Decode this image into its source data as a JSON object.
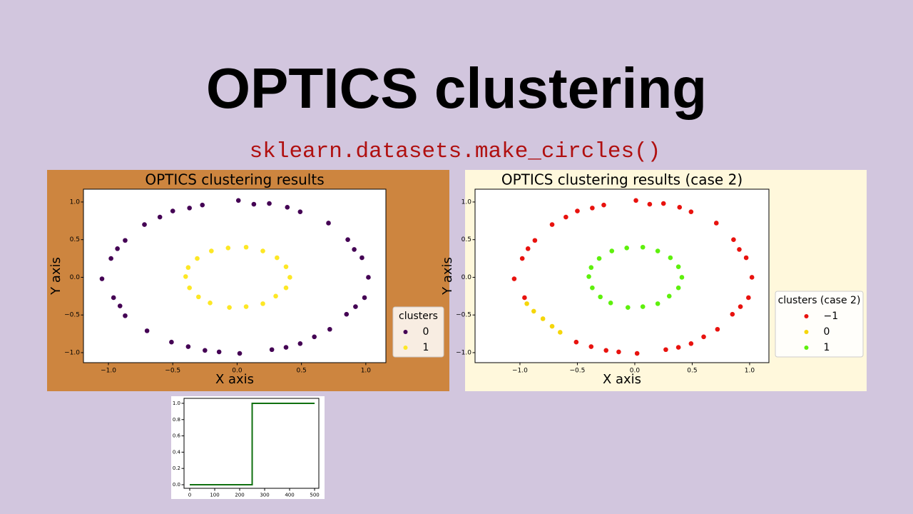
{
  "slide": {
    "title": "OPTICS clustering",
    "subtitle": "sklearn.datasets.make_circles()"
  },
  "chart_data": [
    {
      "type": "scatter",
      "title": "OPTICS clustering results",
      "xlabel": "X axis",
      "ylabel": "Y axis",
      "background": "#cd853f",
      "legend_title": "clusters",
      "legend": "lower right",
      "xlim": [
        -1.194,
        1.156
      ],
      "ylim": [
        -1.133,
        1.17
      ],
      "xticks": [
        {
          "value": -1,
          "label": "−1.0"
        },
        {
          "value": -0.5,
          "label": "−0.5"
        },
        {
          "value": 0,
          "label": "0.0"
        },
        0.5,
        {
          "value": 1,
          "label": "1.0"
        }
      ],
      "yticks": [
        {
          "value": -1,
          "label": "−1.0"
        },
        {
          "value": -0.5,
          "label": "−0.5"
        },
        {
          "value": 0,
          "label": "0.0"
        },
        0.5,
        {
          "value": 1,
          "label": "1.0"
        }
      ],
      "series": [
        {
          "name": "0",
          "color": "#440154",
          "x": [
            1.02,
            0.97,
            0.86,
            0.71,
            0.49,
            0.25,
            0.01,
            -0.27,
            -0.5,
            -0.72,
            -0.87,
            -0.98,
            -1.05,
            -0.96,
            -0.87,
            -0.7,
            -0.51,
            -0.25,
            0.02,
            0.27,
            0.49,
            0.72,
            0.85,
            0.99,
            0.91,
            0.39,
            -0.37,
            -0.93,
            -0.91,
            -0.38,
            0.38,
            0.92,
            0.13,
            -0.14,
            -0.6,
            0.6
          ],
          "y": [
            0.0,
            0.26,
            0.5,
            0.72,
            0.87,
            0.98,
            1.02,
            0.96,
            0.88,
            0.7,
            0.49,
            0.25,
            -0.02,
            -0.27,
            -0.51,
            -0.71,
            -0.86,
            -0.97,
            -1.01,
            -0.96,
            -0.88,
            -0.69,
            -0.49,
            -0.27,
            0.37,
            0.93,
            0.92,
            0.38,
            -0.38,
            -0.92,
            -0.93,
            -0.39,
            0.97,
            -0.99,
            0.8,
            -0.79
          ]
        },
        {
          "name": "1",
          "color": "#fde725",
          "x": [
            0.41,
            0.38,
            0.31,
            0.2,
            0.07,
            -0.07,
            -0.2,
            -0.31,
            -0.38,
            -0.4,
            -0.37,
            -0.3,
            -0.21,
            -0.06,
            0.07,
            0.2,
            0.3,
            0.38
          ],
          "y": [
            0.0,
            0.14,
            0.26,
            0.35,
            0.4,
            0.39,
            0.35,
            0.25,
            0.13,
            0.01,
            -0.14,
            -0.26,
            -0.34,
            -0.4,
            -0.39,
            -0.35,
            -0.25,
            -0.14
          ]
        }
      ]
    },
    {
      "type": "scatter",
      "title": "OPTICS clustering results (case 2)",
      "xlabel": "X axis",
      "ylabel": "Y axis",
      "background": "#fff8dc",
      "legend_title": "clusters (case 2)",
      "legend": "center right",
      "xlim": [
        -1.391,
        1.168
      ],
      "ylim": [
        -1.133,
        1.17
      ],
      "xticks": [
        {
          "value": -1,
          "label": "−1.0"
        },
        {
          "value": -0.5,
          "label": "−0.5"
        },
        {
          "value": 0,
          "label": "0.0"
        },
        0.5,
        {
          "value": 1,
          "label": "1.0"
        }
      ],
      "yticks": [
        {
          "value": -1,
          "label": "−1.0"
        },
        {
          "value": -0.5,
          "label": "−0.5"
        },
        {
          "value": 0,
          "label": "0.0"
        },
        0.5,
        {
          "value": 1,
          "label": "1.0"
        }
      ],
      "series": [
        {
          "name": "−1",
          "color": "#e8120e",
          "x": [
            1.02,
            0.97,
            0.86,
            0.71,
            0.49,
            0.25,
            0.01,
            -0.27,
            -0.5,
            -0.72,
            -0.87,
            -0.98,
            -1.05,
            -0.96,
            -0.51,
            -0.25,
            0.02,
            0.27,
            0.49,
            0.72,
            0.85,
            0.99,
            0.91,
            0.39,
            -0.37,
            -0.93,
            -0.38,
            0.38,
            0.92,
            0.13,
            -0.14,
            -0.6,
            0.6
          ],
          "y": [
            0.0,
            0.26,
            0.5,
            0.72,
            0.87,
            0.98,
            1.02,
            0.96,
            0.88,
            0.7,
            0.49,
            0.25,
            -0.02,
            -0.27,
            -0.86,
            -0.97,
            -1.01,
            -0.96,
            -0.88,
            -0.69,
            -0.49,
            -0.27,
            0.37,
            0.93,
            0.92,
            0.38,
            -0.92,
            -0.93,
            -0.39,
            0.97,
            -0.99,
            0.8,
            -0.79
          ]
        },
        {
          "name": "0",
          "color": "#f5d60a",
          "x": [
            -0.94,
            -0.88,
            -0.8,
            -0.72,
            -0.65
          ],
          "y": [
            -0.35,
            -0.45,
            -0.55,
            -0.65,
            -0.73
          ]
        },
        {
          "name": "1",
          "color": "#5ef00c",
          "x": [
            0.41,
            0.38,
            0.31,
            0.2,
            0.07,
            -0.07,
            -0.2,
            -0.31,
            -0.38,
            -0.4,
            -0.37,
            -0.3,
            -0.21,
            -0.06,
            0.07,
            0.2,
            0.3,
            0.38
          ],
          "y": [
            0.0,
            0.14,
            0.26,
            0.35,
            0.4,
            0.39,
            0.35,
            0.25,
            0.13,
            0.01,
            -0.14,
            -0.26,
            -0.34,
            -0.4,
            -0.39,
            -0.35,
            -0.25,
            -0.14
          ]
        }
      ]
    },
    {
      "type": "line",
      "background": "#ffffff",
      "x": [
        0,
        250,
        250,
        500
      ],
      "series": [
        {
          "color": "#107010",
          "values": [
            0,
            0,
            1,
            1
          ]
        }
      ],
      "xlim": [
        -22.9,
        517
      ],
      "ylim": [
        -0.044,
        1.061
      ],
      "xticks": [
        0,
        100,
        200,
        300,
        400,
        500
      ],
      "yticks": [
        {
          "value": 0,
          "label": "0.0"
        },
        0.2,
        0.4,
        0.6,
        0.8,
        {
          "value": 1,
          "label": "1.0"
        }
      ]
    }
  ]
}
